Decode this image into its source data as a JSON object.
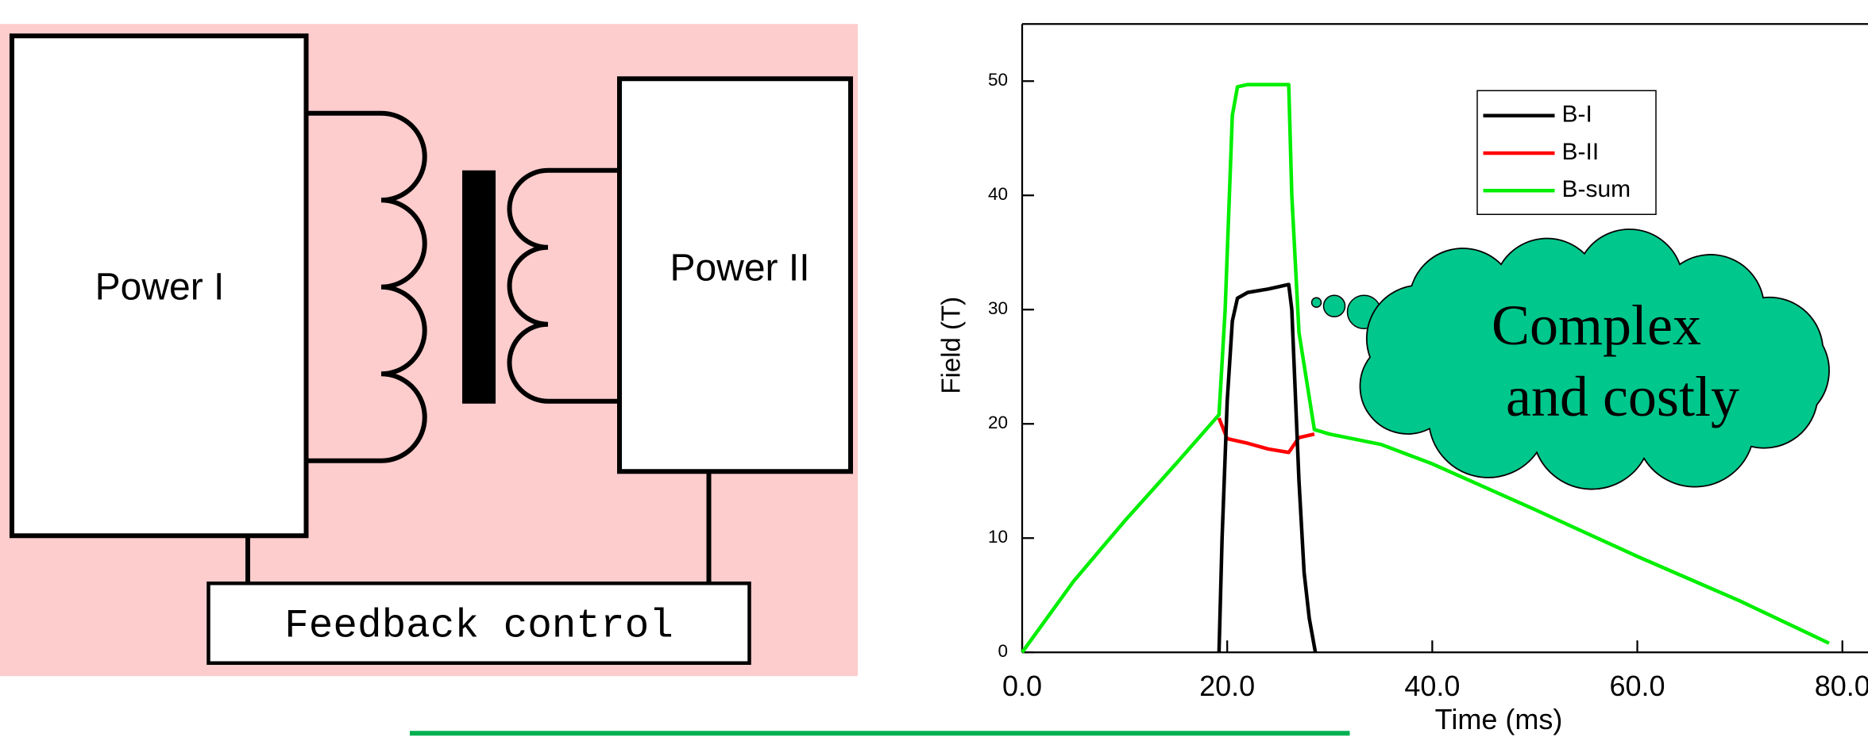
{
  "diagram": {
    "power_1": "Power I",
    "power_2": "Power II",
    "feedback": "Feedback control"
  },
  "chart_data": {
    "type": "line",
    "xlabel": "Time (ms)",
    "ylabel": "Field (T)",
    "xlim": [
      0,
      82.5
    ],
    "ylim": [
      0,
      55
    ],
    "xticks": [
      {
        "value": 0,
        "label": "0.0"
      },
      {
        "value": 20,
        "label": "20.0"
      },
      {
        "value": 40,
        "label": "40.0"
      },
      {
        "value": 60,
        "label": "60.0"
      },
      {
        "value": 80,
        "label": "80.0"
      }
    ],
    "yticks": [
      0,
      10,
      20,
      30,
      40,
      50
    ],
    "legend": "top-right",
    "annotation": [
      "Complex",
      "and costly"
    ],
    "series": [
      {
        "name": "B-I",
        "color": "#000000",
        "x": [
          19.2,
          19.5,
          20,
          20.5,
          21,
          22,
          24,
          26,
          26.3,
          27,
          27.5,
          28,
          28.6
        ],
        "values": [
          0,
          10,
          22,
          29,
          31,
          31.5,
          31.8,
          32.2,
          30,
          15,
          7,
          3,
          0
        ]
      },
      {
        "name": "B-II",
        "color": "#ff0000",
        "x": [
          19.2,
          20,
          22,
          24,
          26,
          27,
          28.5
        ],
        "values": [
          20.5,
          18.7,
          18.3,
          17.8,
          17.5,
          18.8,
          19.1
        ]
      },
      {
        "name": "B-sum",
        "color": "#00ee00",
        "x": [
          0,
          5,
          10,
          15,
          19.2,
          19.8,
          20.5,
          21,
          22,
          26,
          26.3,
          27,
          28.5,
          30,
          35,
          40,
          50,
          60,
          70,
          78.7
        ],
        "values": [
          0,
          6.2,
          11.5,
          16.5,
          20.8,
          30,
          47,
          49.5,
          49.7,
          49.7,
          40,
          28,
          19.5,
          19.1,
          18.2,
          16.5,
          12.5,
          8.4,
          4.5,
          0.8
        ]
      }
    ]
  }
}
